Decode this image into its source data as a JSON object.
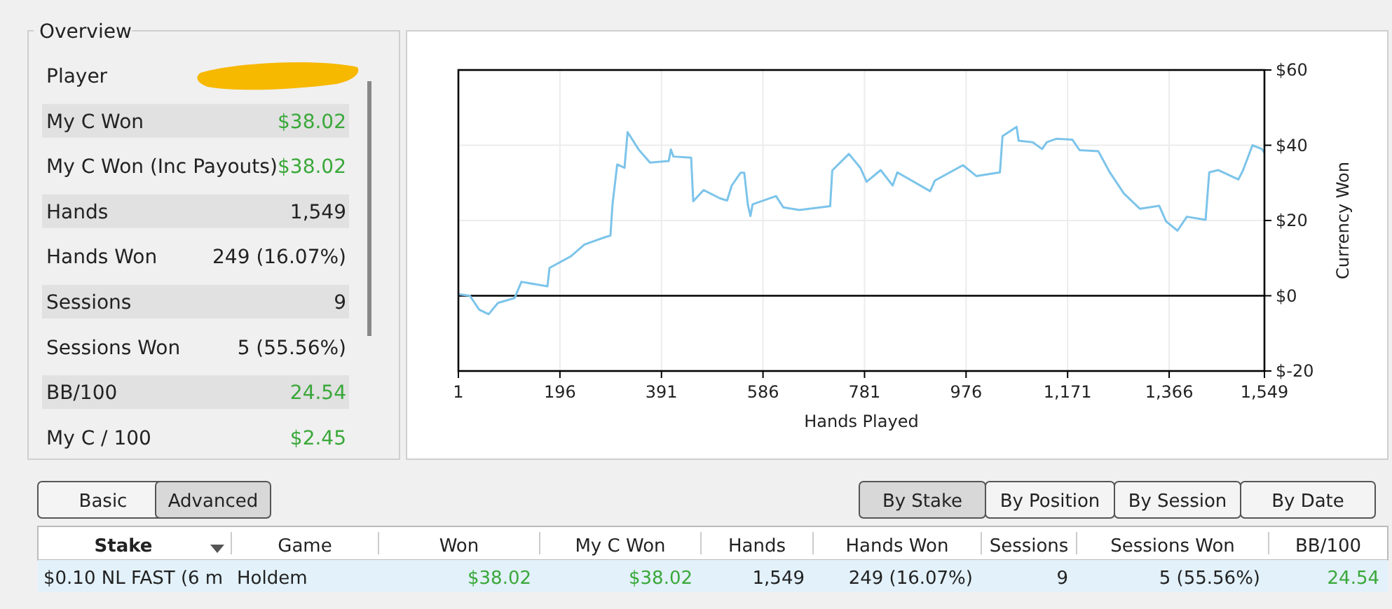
{
  "chart_data": [
    {
      "type": "other",
      "title": "Overview",
      "categories": [
        "Player",
        "My C Won",
        "My C Won (Inc Payouts)",
        "Hands",
        "Hands Won",
        "Sessions",
        "Sessions Won",
        "BB/100",
        "My C / 100"
      ],
      "value_labels": [
        null,
        "$38.02",
        "$38.02",
        "1,549",
        "249 (16.07%)",
        "9",
        "5 (55.56%)",
        "24.54",
        "$2.45"
      ],
      "colors": [
        null,
        "#3aa83a",
        "#3aa83a",
        null,
        null,
        null,
        null,
        "#3aa83a",
        "#3aa83a"
      ]
    },
    {
      "type": "line",
      "xlabel": "Hands Played",
      "ylabel": "Currency Won",
      "xlim": [
        1,
        1549
      ],
      "ylim": [
        -20,
        60
      ],
      "xticks": [
        1,
        196,
        391,
        586,
        781,
        976,
        {
          "value": 1171,
          "label": "1,171"
        },
        {
          "value": 1366,
          "label": "1,366"
        },
        {
          "value": 1549,
          "label": "1,549"
        }
      ],
      "yticks": [
        {
          "value": -20,
          "label": "$-20"
        },
        {
          "value": 0,
          "label": "$0"
        },
        {
          "value": 20,
          "label": "$20"
        },
        {
          "value": 40,
          "label": "$40"
        },
        {
          "value": 60,
          "label": "$60"
        }
      ],
      "grid": true,
      "ref_lines": [
        {
          "axis": "y",
          "value": 0,
          "color": "#000000"
        }
      ],
      "series": [
        {
          "color": "#7cc4ea",
          "x": [
            1,
            23,
            41,
            59,
            77,
            109,
            122,
            172,
            176,
            217,
            243,
            279,
            293,
            297,
            306,
            320,
            326,
            347,
            369,
            405,
            409,
            414,
            448,
            452,
            472,
            503,
            517,
            526,
            543,
            550,
            557,
            562,
            566,
            611,
            625,
            656,
            715,
            719,
            751,
            773,
            785,
            812,
            835,
            844,
            907,
            916,
            970,
            996,
            1041,
            1046,
            1073,
            1077,
            1104,
            1122,
            1131,
            1149,
            1180,
            1194,
            1230,
            1252,
            1279,
            1310,
            1347,
            1360,
            1382,
            1400,
            1436,
            1443,
            1460,
            1499,
            1508,
            1526,
            1544,
            1549
          ],
          "values": [
            0.4,
            0,
            -3.7,
            -4.9,
            -1.9,
            -0.6,
            3.7,
            2.5,
            7.4,
            10.5,
            13.6,
            15.4,
            16,
            24.3,
            34.9,
            34,
            43.5,
            38.9,
            35.4,
            35.8,
            38.9,
            37,
            36.7,
            25.1,
            28.1,
            25.9,
            25.3,
            29.3,
            32.7,
            32.7,
            24.1,
            21.2,
            24.3,
            26.5,
            23.5,
            22.8,
            23.8,
            33.3,
            37.7,
            34,
            30.3,
            33.4,
            29.3,
            32.8,
            27.8,
            30.6,
            34.7,
            31.8,
            32.8,
            42.4,
            44.9,
            41.2,
            40.8,
            39,
            40.8,
            41.7,
            41.5,
            38.7,
            38.4,
            32.8,
            27.2,
            23.1,
            23.9,
            19.8,
            17.3,
            21,
            20.2,
            32.8,
            33.4,
            30.9,
            33.4,
            40,
            39,
            38
          ]
        }
      ]
    },
    {
      "type": "other",
      "categories": [
        "Stake",
        "Game",
        "Won",
        "My C Won",
        "Hands",
        "Hands Won",
        "Sessions",
        "Sessions Won",
        "BB/100"
      ],
      "value_labels": [
        "$0.10 NL FAST (6 m",
        "Holdem",
        "$38.02",
        "$38.02",
        "1,549",
        "249 (16.07%)",
        "9",
        "5 (55.56%)",
        "24.54"
      ],
      "colors": [
        null,
        null,
        "#3aa83a",
        "#3aa83a",
        null,
        null,
        null,
        null,
        "#3aa83a"
      ],
      "annotations": [
        "Basic",
        "Advanced",
        "By Stake",
        "By Position",
        "By Session",
        "By Date"
      ]
    }
  ]
}
